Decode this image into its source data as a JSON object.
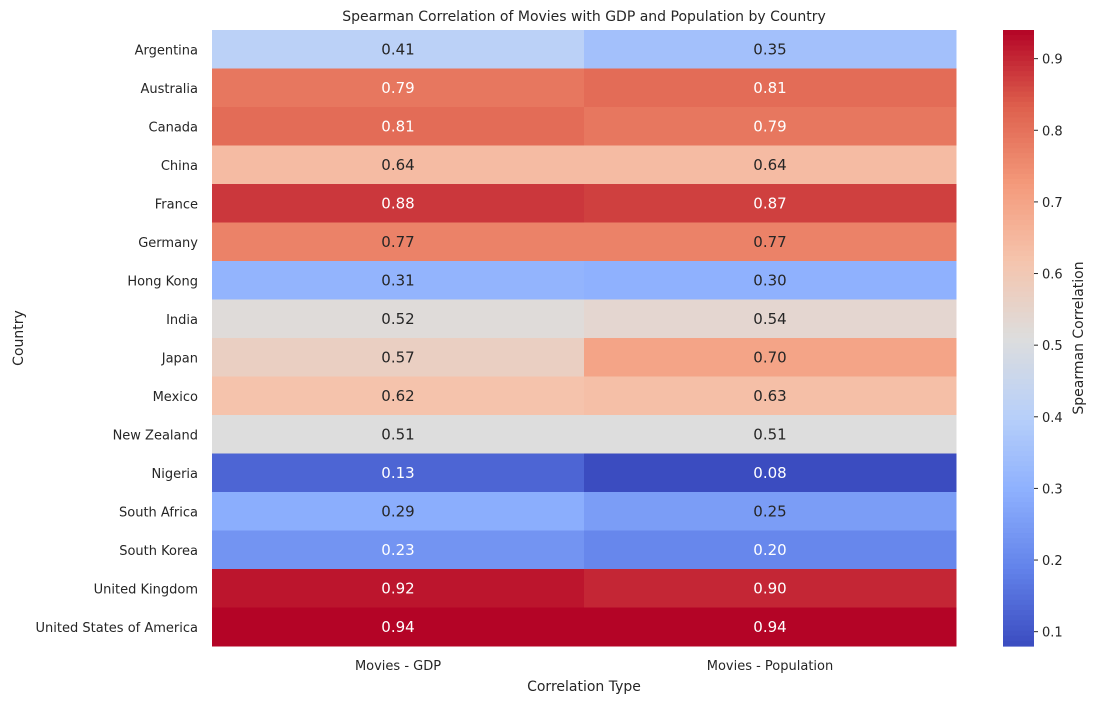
{
  "chart_data": {
    "type": "heatmap",
    "title": "Spearman Correlation of Movies with GDP and Population by Country",
    "xlabel": "Correlation Type",
    "ylabel": "Country",
    "columns": [
      "Movies - GDP",
      "Movies - Population"
    ],
    "rows": [
      "Argentina",
      "Australia",
      "Canada",
      "China",
      "France",
      "Germany",
      "Hong Kong",
      "India",
      "Japan",
      "Mexico",
      "New Zealand",
      "Nigeria",
      "South Africa",
      "South Korea",
      "United Kingdom",
      "United States of America"
    ],
    "values": [
      [
        0.41,
        0.35
      ],
      [
        0.79,
        0.81
      ],
      [
        0.81,
        0.79
      ],
      [
        0.64,
        0.64
      ],
      [
        0.88,
        0.87
      ],
      [
        0.77,
        0.77
      ],
      [
        0.31,
        0.3
      ],
      [
        0.52,
        0.54
      ],
      [
        0.57,
        0.7
      ],
      [
        0.62,
        0.63
      ],
      [
        0.51,
        0.51
      ],
      [
        0.13,
        0.08
      ],
      [
        0.29,
        0.25
      ],
      [
        0.23,
        0.2
      ],
      [
        0.92,
        0.9
      ],
      [
        0.94,
        0.94
      ]
    ],
    "colormap": "coolwarm",
    "color_range": [
      0.08,
      0.94
    ],
    "colorbar": {
      "label": "Spearman Correlation",
      "ticks": [
        "0.1",
        "0.2",
        "0.3",
        "0.4",
        "0.5",
        "0.6",
        "0.7",
        "0.8",
        "0.9"
      ]
    },
    "annotations": true,
    "grid": false
  }
}
